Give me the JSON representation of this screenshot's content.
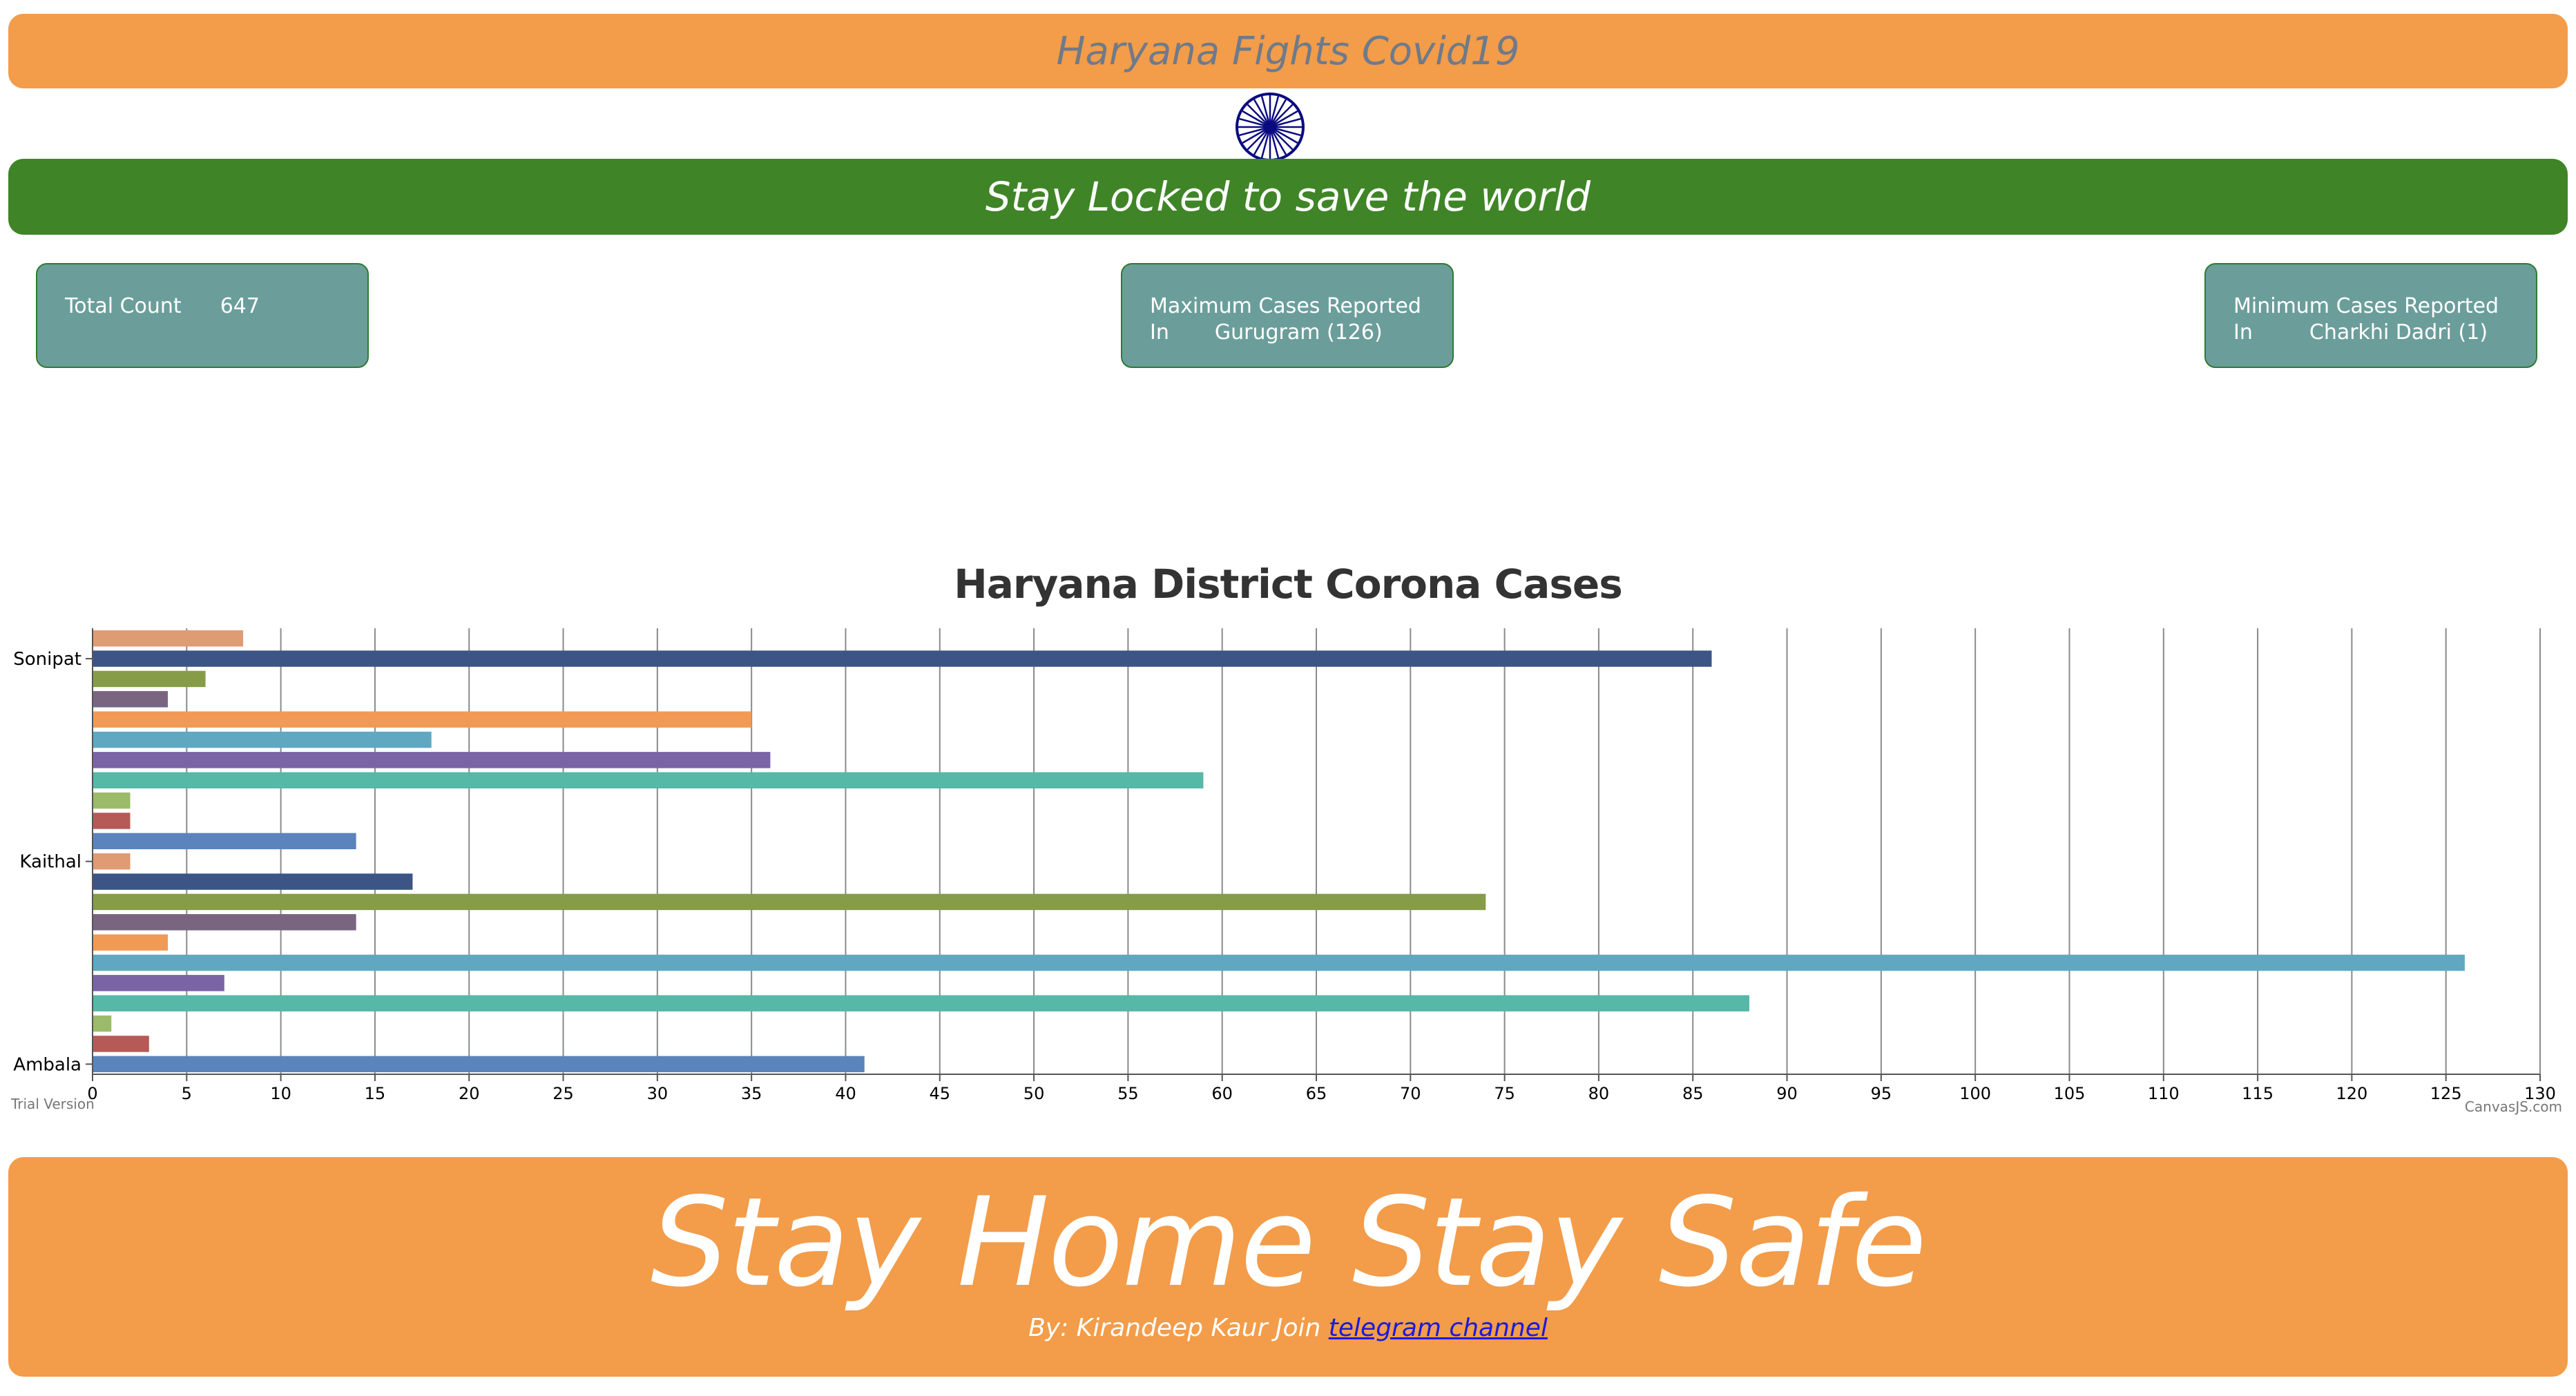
{
  "header": {
    "title": "Haryana Fights Covid19",
    "slogan": "Stay Locked to save the world"
  },
  "stats": {
    "total_label": "Total Count",
    "total_value": "647",
    "max_label": "Maximum Cases Reported",
    "max_in": "In",
    "max_value": "Gurugram (126)",
    "min_label": "Minimum Cases Reported",
    "min_in": "In",
    "min_value": "Charkhi Dadri (1)"
  },
  "footer": {
    "headline": "Stay Home Stay Safe",
    "byline": "By: Kirandeep Kaur Join",
    "link_text": "telegram channel"
  },
  "watermarks": {
    "left": "Trial Version",
    "right": "CanvasJS.com"
  },
  "colors": {
    "saffron": "#f39c49",
    "green": "#3f8527",
    "card": "#6b9e9b",
    "chakra": "#0a0a80"
  },
  "icons": {
    "emblem": "ashoka-chakra-icon"
  },
  "chart_data": {
    "type": "bar",
    "orientation": "horizontal",
    "title": "Haryana District Corona Cases",
    "xlim": [
      0,
      130
    ],
    "x_interval": 5,
    "grid": true,
    "categories_bottom_to_top": [
      "Ambala",
      "",
      "",
      "",
      "",
      "",
      "",
      "",
      "",
      "",
      "Kaithal",
      "",
      "",
      "",
      "",
      "",
      "",
      "",
      "",
      "",
      "Sonipat",
      ""
    ],
    "values_bottom_to_top": [
      41,
      3,
      1,
      88,
      7,
      126,
      4,
      14,
      74,
      17,
      2,
      14,
      2,
      2,
      59,
      36,
      18,
      35,
      4,
      6,
      86,
      8
    ],
    "bar_colors_bottom_to_top": [
      "#5b84bd",
      "#b55a56",
      "#9bbb6a",
      "#56b8a6",
      "#7a64a6",
      "#60a8c2",
      "#f09a55",
      "#7a6580",
      "#879c48",
      "#3c5586",
      "#df9b73",
      "#5b84bd",
      "#b55a56",
      "#9bbb6a",
      "#56b8a6",
      "#7a64a6",
      "#60a8c2",
      "#f09a55",
      "#7a6580",
      "#879c48",
      "#3c5586",
      "#df9b73"
    ]
  }
}
